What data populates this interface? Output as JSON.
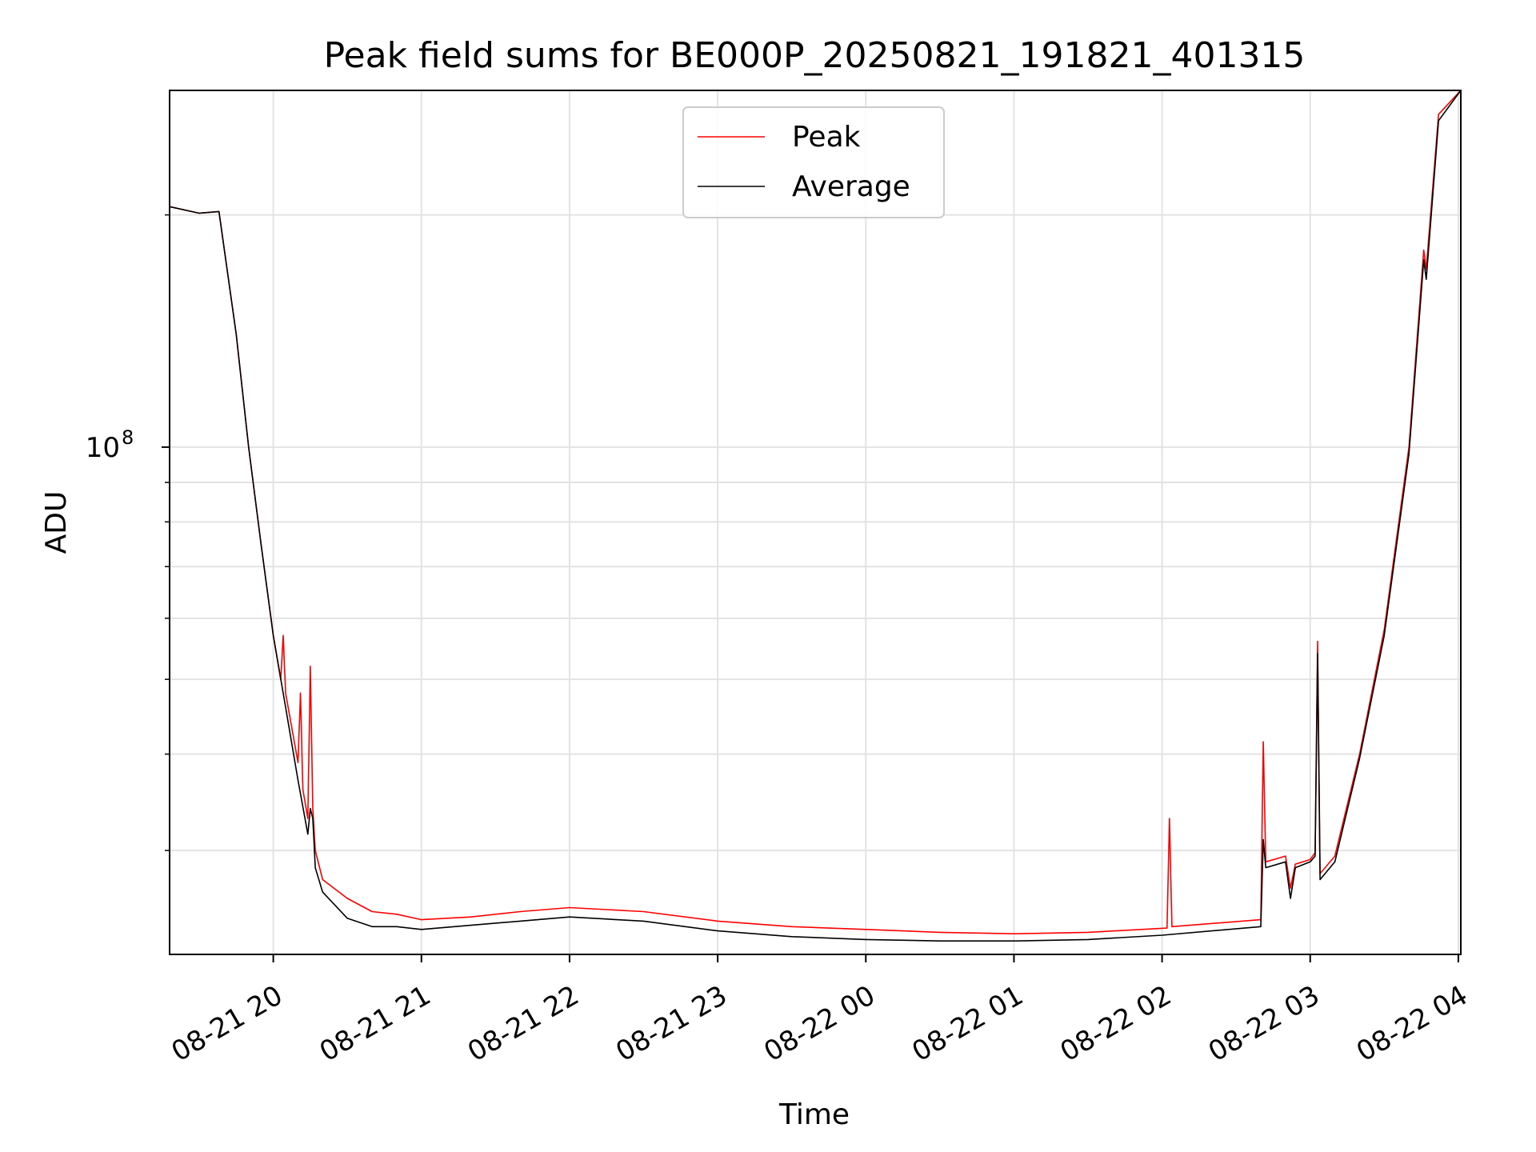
{
  "chart_data": {
    "type": "line",
    "title": "Peak field sums for BE000P_20250821_191821_401315",
    "xlabel": "Time",
    "ylabel": "ADU",
    "y_scale": "log",
    "ylim": [
      22000000,
      290000000
    ],
    "xlim": [
      "2025-08-21 19:18",
      "2025-08-22 04:01"
    ],
    "grid": true,
    "legend_position": "upper center",
    "x_ticks": [
      {
        "t": "2025-08-21 20:00",
        "label": "08-21 20"
      },
      {
        "t": "2025-08-21 21:00",
        "label": "08-21 21"
      },
      {
        "t": "2025-08-21 22:00",
        "label": "08-21 22"
      },
      {
        "t": "2025-08-21 23:00",
        "label": "08-21 23"
      },
      {
        "t": "2025-08-22 00:00",
        "label": "08-22 00"
      },
      {
        "t": "2025-08-22 01:00",
        "label": "08-22 01"
      },
      {
        "t": "2025-08-22 02:00",
        "label": "08-22 02"
      },
      {
        "t": "2025-08-22 03:00",
        "label": "08-22 03"
      },
      {
        "t": "2025-08-22 04:00",
        "label": "08-22 04"
      }
    ],
    "y_major_ticks": [
      {
        "value": 100000000,
        "base": "10",
        "exp": "8"
      }
    ],
    "y_minor_ticks": [
      30000000,
      40000000,
      50000000,
      60000000,
      70000000,
      80000000,
      90000000,
      200000000
    ],
    "series": [
      {
        "name": "Peak",
        "color": "#ff0000",
        "points": [
          [
            "2025-08-21 19:18",
            205000000
          ],
          [
            "2025-08-21 19:30",
            201000000
          ],
          [
            "2025-08-21 19:38",
            202000000
          ],
          [
            "2025-08-21 19:45",
            140000000
          ],
          [
            "2025-08-21 19:50",
            100000000
          ],
          [
            "2025-08-21 19:55",
            75000000
          ],
          [
            "2025-08-21 20:00",
            57000000
          ],
          [
            "2025-08-21 20:03",
            50000000
          ],
          [
            "2025-08-21 20:04",
            57000000
          ],
          [
            "2025-08-21 20:05",
            48000000
          ],
          [
            "2025-08-21 20:10",
            39000000
          ],
          [
            "2025-08-21 20:11",
            48000000
          ],
          [
            "2025-08-21 20:12",
            36000000
          ],
          [
            "2025-08-21 20:14",
            33000000
          ],
          [
            "2025-08-21 20:15",
            52000000
          ],
          [
            "2025-08-21 20:16",
            34000000
          ],
          [
            "2025-08-21 20:17",
            30000000
          ],
          [
            "2025-08-21 20:20",
            27500000
          ],
          [
            "2025-08-21 20:30",
            26000000
          ],
          [
            "2025-08-21 20:40",
            25000000
          ],
          [
            "2025-08-21 20:50",
            24800000
          ],
          [
            "2025-08-21 21:00",
            24400000
          ],
          [
            "2025-08-21 21:20",
            24600000
          ],
          [
            "2025-08-21 21:40",
            25000000
          ],
          [
            "2025-08-21 22:00",
            25300000
          ],
          [
            "2025-08-21 22:30",
            25000000
          ],
          [
            "2025-08-21 23:00",
            24300000
          ],
          [
            "2025-08-21 23:30",
            23900000
          ],
          [
            "2025-08-22 00:00",
            23700000
          ],
          [
            "2025-08-22 00:30",
            23500000
          ],
          [
            "2025-08-22 01:00",
            23400000
          ],
          [
            "2025-08-22 01:30",
            23500000
          ],
          [
            "2025-08-22 02:02",
            23800000
          ],
          [
            "2025-08-22 02:03",
            33000000
          ],
          [
            "2025-08-22 02:04",
            23900000
          ],
          [
            "2025-08-22 02:40",
            24400000
          ],
          [
            "2025-08-22 02:41",
            41500000
          ],
          [
            "2025-08-22 02:42",
            29000000
          ],
          [
            "2025-08-22 02:50",
            29500000
          ],
          [
            "2025-08-22 02:52",
            26800000
          ],
          [
            "2025-08-22 02:54",
            28800000
          ],
          [
            "2025-08-22 03:00",
            29200000
          ],
          [
            "2025-08-22 03:02",
            29800000
          ],
          [
            "2025-08-22 03:03",
            56000000
          ],
          [
            "2025-08-22 03:04",
            28000000
          ],
          [
            "2025-08-22 03:10",
            29500000
          ],
          [
            "2025-08-22 03:20",
            40000000
          ],
          [
            "2025-08-22 03:30",
            58000000
          ],
          [
            "2025-08-22 03:40",
            100000000
          ],
          [
            "2025-08-22 03:46",
            180000000
          ],
          [
            "2025-08-22 03:47",
            170000000
          ],
          [
            "2025-08-22 03:52",
            270000000
          ],
          [
            "2025-08-22 04:01",
            290000000
          ]
        ]
      },
      {
        "name": "Average",
        "color": "#000000",
        "points": [
          [
            "2025-08-21 19:18",
            205000000
          ],
          [
            "2025-08-21 19:30",
            201000000
          ],
          [
            "2025-08-21 19:38",
            202000000
          ],
          [
            "2025-08-21 19:45",
            140000000
          ],
          [
            "2025-08-21 19:50",
            100000000
          ],
          [
            "2025-08-21 19:55",
            75000000
          ],
          [
            "2025-08-21 20:00",
            57000000
          ],
          [
            "2025-08-21 20:05",
            46000000
          ],
          [
            "2025-08-21 20:10",
            37000000
          ],
          [
            "2025-08-21 20:14",
            31500000
          ],
          [
            "2025-08-21 20:15",
            34000000
          ],
          [
            "2025-08-21 20:16",
            33000000
          ],
          [
            "2025-08-21 20:17",
            28500000
          ],
          [
            "2025-08-21 20:20",
            26500000
          ],
          [
            "2025-08-21 20:30",
            24500000
          ],
          [
            "2025-08-21 20:40",
            23900000
          ],
          [
            "2025-08-21 20:50",
            23900000
          ],
          [
            "2025-08-21 21:00",
            23700000
          ],
          [
            "2025-08-21 21:20",
            24000000
          ],
          [
            "2025-08-21 21:40",
            24300000
          ],
          [
            "2025-08-21 22:00",
            24600000
          ],
          [
            "2025-08-21 22:30",
            24300000
          ],
          [
            "2025-08-21 23:00",
            23600000
          ],
          [
            "2025-08-21 23:30",
            23200000
          ],
          [
            "2025-08-22 00:00",
            23000000
          ],
          [
            "2025-08-22 00:30",
            22900000
          ],
          [
            "2025-08-22 01:00",
            22900000
          ],
          [
            "2025-08-22 01:30",
            23000000
          ],
          [
            "2025-08-22 02:00",
            23300000
          ],
          [
            "2025-08-22 02:40",
            23900000
          ],
          [
            "2025-08-22 02:41",
            31000000
          ],
          [
            "2025-08-22 02:42",
            28500000
          ],
          [
            "2025-08-22 02:50",
            29000000
          ],
          [
            "2025-08-22 02:52",
            26000000
          ],
          [
            "2025-08-22 02:54",
            28500000
          ],
          [
            "2025-08-22 03:00",
            29000000
          ],
          [
            "2025-08-22 03:02",
            29500000
          ],
          [
            "2025-08-22 03:03",
            54000000
          ],
          [
            "2025-08-22 03:04",
            27500000
          ],
          [
            "2025-08-22 03:10",
            29000000
          ],
          [
            "2025-08-22 03:20",
            39500000
          ],
          [
            "2025-08-22 03:30",
            57000000
          ],
          [
            "2025-08-22 03:40",
            98000000
          ],
          [
            "2025-08-22 03:46",
            175000000
          ],
          [
            "2025-08-22 03:47",
            165000000
          ],
          [
            "2025-08-22 03:52",
            265000000
          ],
          [
            "2025-08-22 04:01",
            290000000
          ]
        ]
      }
    ]
  }
}
